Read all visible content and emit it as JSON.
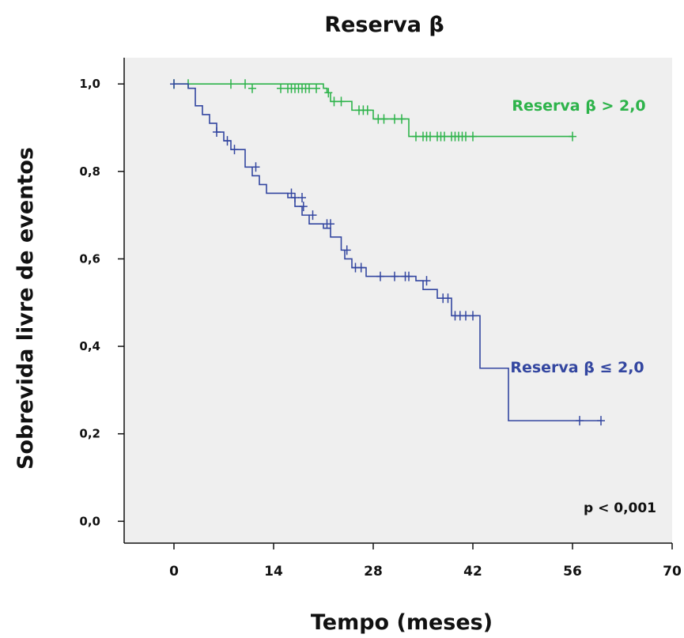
{
  "chart_data": {
    "type": "line",
    "subtype": "kaplan-meier step",
    "title": "Reserva β",
    "xlabel": "Tempo (meses)",
    "ylabel": "Sobrevida livre de eventos",
    "xlim": [
      -7,
      70
    ],
    "ylim": [
      -0.05,
      1.06
    ],
    "x_ticks": [
      0,
      14,
      28,
      42,
      56,
      70
    ],
    "y_ticks": [
      0.0,
      0.2,
      0.4,
      0.6,
      0.8,
      1.0
    ],
    "x_tick_labels": [
      "0",
      "14",
      "28",
      "42",
      "56",
      "70"
    ],
    "y_tick_labels": [
      "0,0",
      "0,2",
      "0,4",
      "0,6",
      "0,8",
      "1,0"
    ],
    "grid": false,
    "background_color": "#efefef",
    "annotation": "p < 0,001",
    "series": [
      {
        "name": "Reserva β > 2,0",
        "color": "#2db34a",
        "steps": [
          [
            0,
            1.0
          ],
          [
            21,
            0.99
          ],
          [
            21.5,
            0.98
          ],
          [
            22,
            0.96
          ],
          [
            25,
            0.94
          ],
          [
            28,
            0.92
          ],
          [
            33,
            0.88
          ],
          [
            56,
            0.88
          ]
        ],
        "censored": [
          [
            0,
            1.0
          ],
          [
            2,
            1.0
          ],
          [
            8,
            1.0
          ],
          [
            10,
            1.0
          ],
          [
            11,
            0.99
          ],
          [
            15,
            0.99
          ],
          [
            16,
            0.99
          ],
          [
            16.5,
            0.99
          ],
          [
            17,
            0.99
          ],
          [
            17.5,
            0.99
          ],
          [
            18,
            0.99
          ],
          [
            18.5,
            0.99
          ],
          [
            19,
            0.99
          ],
          [
            20,
            0.99
          ],
          [
            21.7,
            0.98
          ],
          [
            22.5,
            0.96
          ],
          [
            23.5,
            0.96
          ],
          [
            26,
            0.94
          ],
          [
            26.6,
            0.94
          ],
          [
            27.2,
            0.94
          ],
          [
            28.7,
            0.92
          ],
          [
            29.5,
            0.92
          ],
          [
            31,
            0.92
          ],
          [
            32,
            0.92
          ],
          [
            34,
            0.88
          ],
          [
            35,
            0.88
          ],
          [
            35.5,
            0.88
          ],
          [
            36,
            0.88
          ],
          [
            37,
            0.88
          ],
          [
            37.5,
            0.88
          ],
          [
            38,
            0.88
          ],
          [
            39,
            0.88
          ],
          [
            39.5,
            0.88
          ],
          [
            40,
            0.88
          ],
          [
            40.5,
            0.88
          ],
          [
            41,
            0.88
          ],
          [
            42,
            0.88
          ],
          [
            56,
            0.88
          ]
        ]
      },
      {
        "name": "Reserva β ≤ 2,0",
        "color": "#3346a0",
        "steps": [
          [
            0,
            1.0
          ],
          [
            2,
            0.99
          ],
          [
            3,
            0.95
          ],
          [
            4,
            0.93
          ],
          [
            5,
            0.91
          ],
          [
            6,
            0.89
          ],
          [
            7,
            0.87
          ],
          [
            8,
            0.85
          ],
          [
            10,
            0.81
          ],
          [
            11,
            0.79
          ],
          [
            12,
            0.77
          ],
          [
            13,
            0.75
          ],
          [
            16,
            0.74
          ],
          [
            17,
            0.72
          ],
          [
            18,
            0.7
          ],
          [
            19,
            0.68
          ],
          [
            21,
            0.67
          ],
          [
            22,
            0.65
          ],
          [
            23.5,
            0.62
          ],
          [
            24,
            0.6
          ],
          [
            25,
            0.58
          ],
          [
            27,
            0.56
          ],
          [
            34,
            0.55
          ],
          [
            35,
            0.53
          ],
          [
            37,
            0.51
          ],
          [
            39,
            0.47
          ],
          [
            43,
            0.35
          ],
          [
            47,
            0.23
          ],
          [
            60,
            0.23
          ]
        ],
        "censored": [
          [
            0,
            1.0
          ],
          [
            6,
            0.89
          ],
          [
            7.5,
            0.87
          ],
          [
            8.5,
            0.85
          ],
          [
            11.5,
            0.81
          ],
          [
            16.5,
            0.75
          ],
          [
            17,
            0.74
          ],
          [
            18,
            0.74
          ],
          [
            18.2,
            0.72
          ],
          [
            19.5,
            0.7
          ],
          [
            21.5,
            0.68
          ],
          [
            22,
            0.68
          ],
          [
            24.3,
            0.62
          ],
          [
            25.5,
            0.58
          ],
          [
            26.3,
            0.58
          ],
          [
            29,
            0.56
          ],
          [
            31,
            0.56
          ],
          [
            32.5,
            0.56
          ],
          [
            33,
            0.56
          ],
          [
            35.5,
            0.55
          ],
          [
            37.8,
            0.51
          ],
          [
            38.5,
            0.51
          ],
          [
            39.5,
            0.47
          ],
          [
            40.2,
            0.47
          ],
          [
            41,
            0.47
          ],
          [
            42,
            0.47
          ],
          [
            57,
            0.23
          ],
          [
            60,
            0.23
          ]
        ]
      }
    ]
  }
}
